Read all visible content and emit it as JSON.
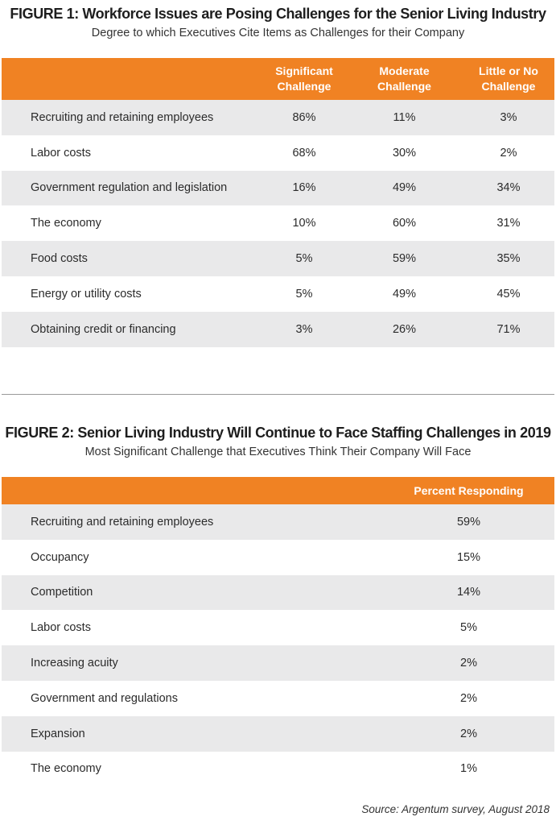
{
  "chart_data": [
    {
      "type": "table",
      "title": "FIGURE 1: Workforce Issues are Posing Challenges for the Senior Living Industry",
      "subtitle": "Degree to which Executives Cite Items as Challenges for their Company",
      "columns": [
        "Significant Challenge",
        "Moderate Challenge",
        "Little or No Challenge"
      ],
      "rows": [
        {
          "label": "Recruiting and retaining employees",
          "values": [
            "86%",
            "11%",
            "3%"
          ]
        },
        {
          "label": "Labor costs",
          "values": [
            "68%",
            "30%",
            "2%"
          ]
        },
        {
          "label": "Government regulation and legislation",
          "values": [
            "16%",
            "49%",
            "34%"
          ]
        },
        {
          "label": "The economy",
          "values": [
            "10%",
            "60%",
            "31%"
          ]
        },
        {
          "label": "Food costs",
          "values": [
            "5%",
            "59%",
            "35%"
          ]
        },
        {
          "label": "Energy or utility costs",
          "values": [
            "5%",
            "49%",
            "45%"
          ]
        },
        {
          "label": "Obtaining credit or financing",
          "values": [
            "3%",
            "26%",
            "71%"
          ]
        }
      ]
    },
    {
      "type": "table",
      "title": "FIGURE 2: Senior Living Industry Will Continue to Face Staffing Challenges in 2019",
      "subtitle": "Most Significant Challenge that Executives Think Their Company Will Face",
      "columns": [
        "Percent Responding"
      ],
      "rows": [
        {
          "label": "Recruiting and retaining employees",
          "values": [
            "59%"
          ]
        },
        {
          "label": "Occupancy",
          "values": [
            "15%"
          ]
        },
        {
          "label": "Competition",
          "values": [
            "14%"
          ]
        },
        {
          "label": "Labor costs",
          "values": [
            "5%"
          ]
        },
        {
          "label": "Increasing acuity",
          "values": [
            "2%"
          ]
        },
        {
          "label": "Government and regulations",
          "values": [
            "2%"
          ]
        },
        {
          "label": "Expansion",
          "values": [
            "2%"
          ]
        },
        {
          "label": "The economy",
          "values": [
            "1%"
          ]
        }
      ]
    }
  ],
  "source": "Source: Argentum survey, August 2018",
  "colors": {
    "header": "#f08223",
    "stripe": "#e9e9ea",
    "divider": "#9a9a9a"
  }
}
